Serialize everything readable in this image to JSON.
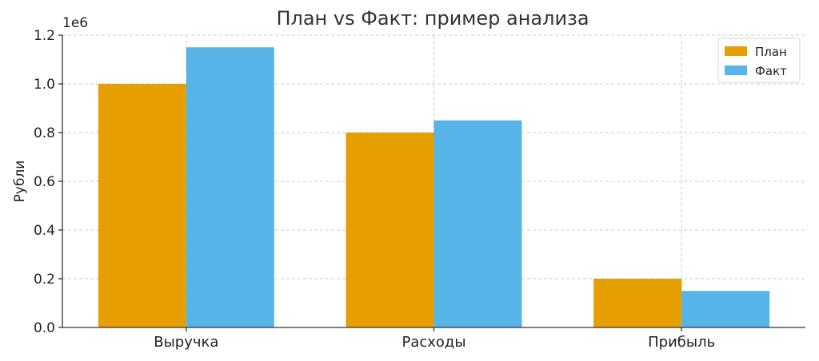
{
  "chart_data": {
    "type": "bar",
    "title": "План vs Факт: пример анализа",
    "xlabel": "",
    "ylabel": "Рубли",
    "y_offset_label": "1e6",
    "categories": [
      "Выручка",
      "Расходы",
      "Прибыль"
    ],
    "series": [
      {
        "name": "План",
        "values": [
          1000000,
          800000,
          200000
        ],
        "color": "#E69F00"
      },
      {
        "name": "Факт",
        "values": [
          1150000,
          850000,
          150000
        ],
        "color": "#56B4E9"
      }
    ],
    "ylim": [
      0,
      1200000
    ],
    "yticks": [
      "0.0",
      "0.2",
      "0.4",
      "0.6",
      "0.8",
      "1.0",
      "1.2"
    ],
    "grid": true,
    "legend_position": "top-right"
  }
}
